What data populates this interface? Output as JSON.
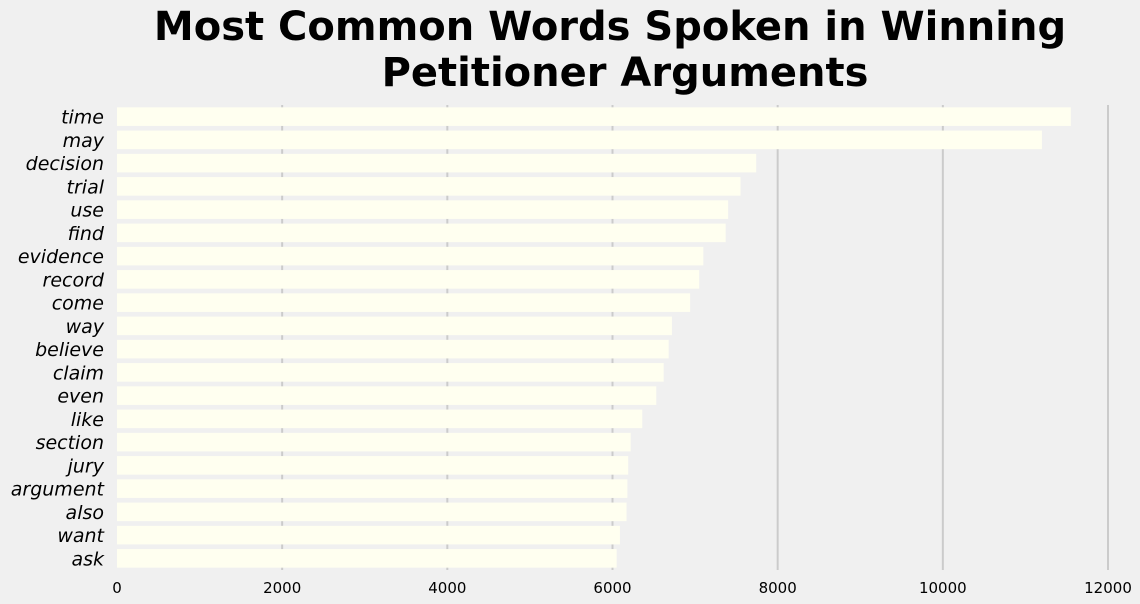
{
  "chart_data": {
    "type": "bar",
    "orientation": "horizontal",
    "title_lines": [
      "Most Common Words Spoken in Winning",
      "Petitioner Arguments"
    ],
    "xlabel": "",
    "ylabel": "",
    "categories": [
      "time",
      "may",
      "decision",
      "trial",
      "use",
      "find",
      "evidence",
      "record",
      "come",
      "way",
      "believe",
      "claim",
      "even",
      "like",
      "section",
      "jury",
      "argument",
      "also",
      "want",
      "ask"
    ],
    "values": [
      11550,
      11200,
      7740,
      7550,
      7400,
      7370,
      7100,
      7050,
      6940,
      6720,
      6680,
      6620,
      6530,
      6360,
      6220,
      6190,
      6180,
      6170,
      6090,
      6050
    ],
    "xlim": [
      0,
      12000
    ],
    "xticks": [
      0,
      2000,
      4000,
      6000,
      8000,
      10000,
      12000
    ],
    "grid": "vertical",
    "bar_color": "#fffff0",
    "grid_color": "#cbcbcb",
    "background": "#f0f0f0"
  }
}
